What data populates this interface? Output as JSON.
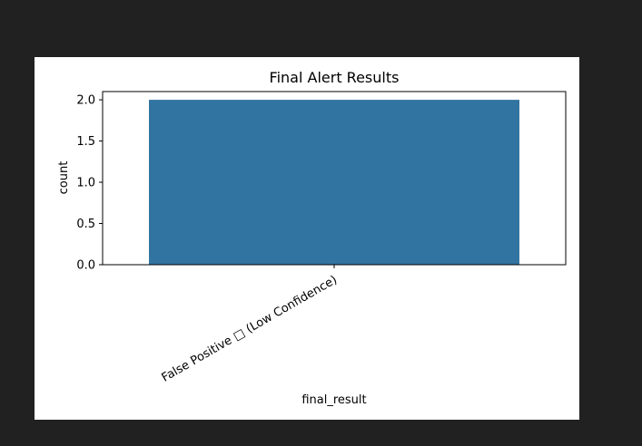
{
  "colors": {
    "page_background": "#212121",
    "figure_background": "#ffffff",
    "bar_fill": "#3274a1",
    "axis_color": "#000000",
    "text_color": "#000000"
  },
  "chart_data": {
    "type": "bar",
    "title": "Final Alert Results",
    "xlabel": "final_result",
    "ylabel": "count",
    "categories": [
      "False Positive □ (Low Confidence)"
    ],
    "values": [
      2
    ],
    "ylim": [
      0,
      2.1
    ],
    "yticks": [
      "0.0",
      "0.5",
      "1.0",
      "1.5",
      "2.0"
    ],
    "grid": false,
    "legend": "none"
  }
}
